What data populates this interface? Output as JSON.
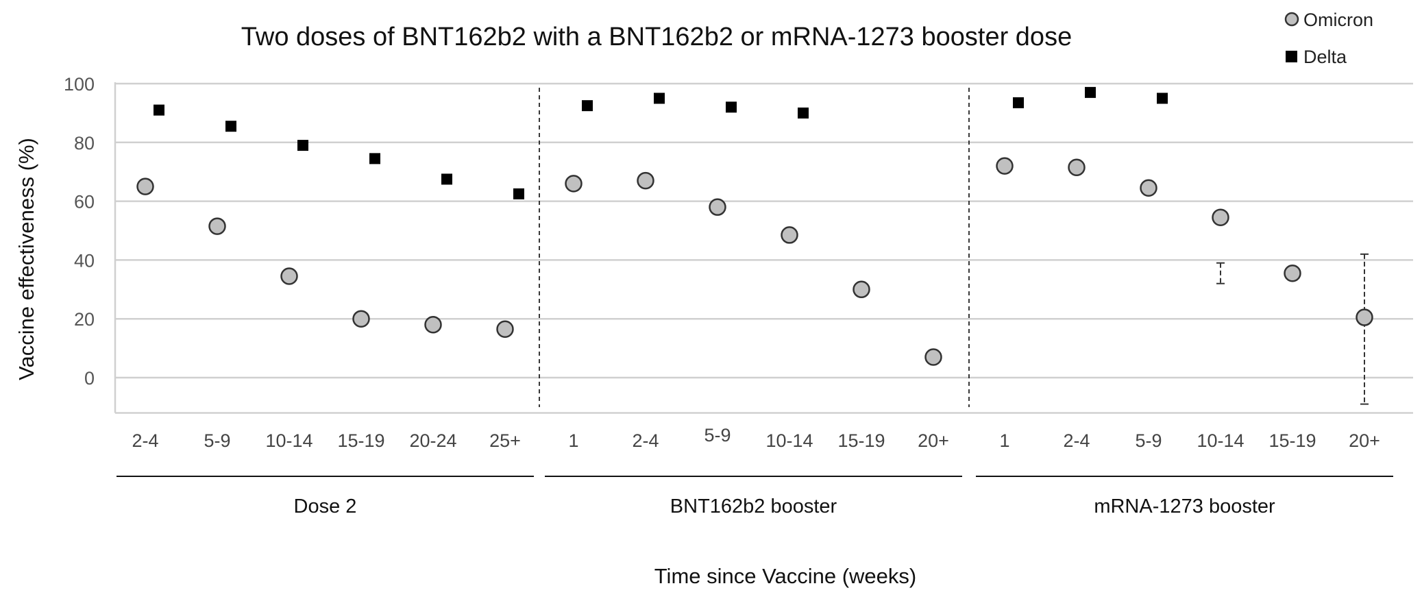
{
  "chart_data": {
    "type": "scatter",
    "title": "Two doses of BNT162b2 with a BNT162b2 or mRNA-1273 booster dose",
    "xlabel": "Time since Vaccine (weeks)",
    "ylabel": "Vaccine effectiveness (%)",
    "ylim": [
      -12,
      100
    ],
    "yticks": [
      0,
      20,
      40,
      60,
      80,
      100
    ],
    "grid": true,
    "legend_position": "top-right",
    "groups": [
      {
        "label": "Dose 2",
        "categories": [
          "2-4",
          "5-9",
          "10-14",
          "15-19",
          "20-24",
          "25+"
        ]
      },
      {
        "label": "BNT162b2 booster",
        "categories": [
          "1",
          "2-4",
          "5-9",
          "10-14",
          "15-19",
          "20+"
        ]
      },
      {
        "label": "mRNA-1273 booster",
        "categories": [
          "1",
          "2-4",
          "5-9",
          "10-14",
          "15-19",
          "20+"
        ]
      }
    ],
    "series": [
      {
        "name": "Omicron",
        "marker": "circle",
        "color": "#c0c0c0",
        "values": [
          65,
          51.5,
          34.5,
          20,
          18,
          16.5,
          66,
          67,
          58,
          48.5,
          30,
          7,
          72,
          71.5,
          64.5,
          54.5,
          35.5,
          20.5
        ],
        "error_bars": {
          "15": [
            32,
            39
          ],
          "17": [
            -9,
            42
          ]
        }
      },
      {
        "name": "Delta",
        "marker": "square",
        "color": "#000000",
        "values": [
          91,
          85.5,
          79,
          74.5,
          67.5,
          62.5,
          92.5,
          95,
          92,
          90,
          null,
          null,
          93.5,
          97,
          95,
          null,
          null,
          null
        ]
      }
    ]
  }
}
